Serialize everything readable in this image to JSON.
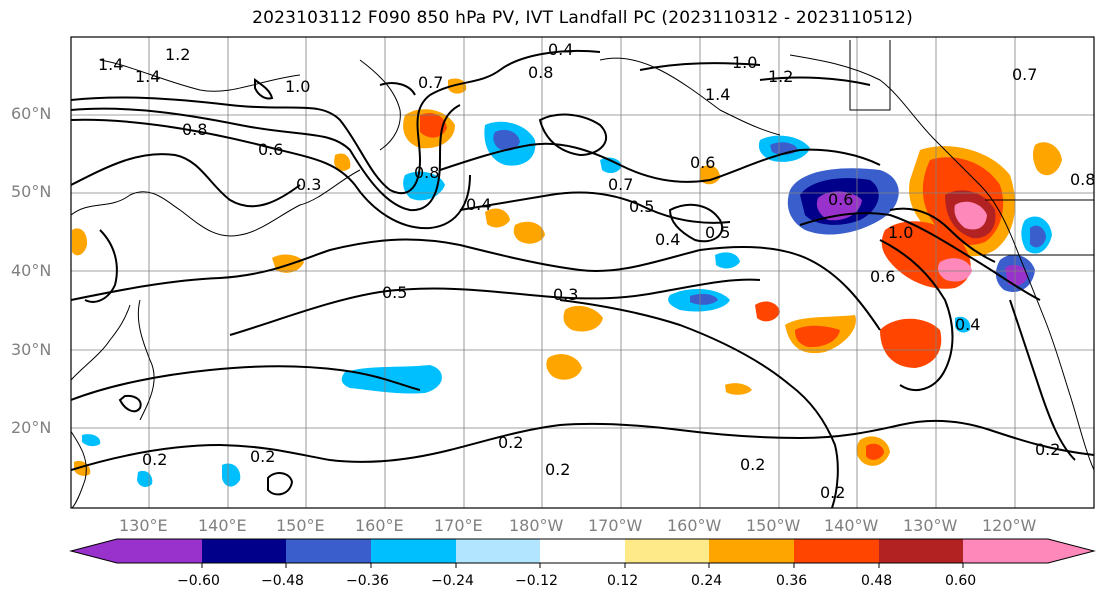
{
  "title": "2023103112 F090 850 hPa PV, IVT Landfall PC (2023110312 - 2023110512)",
  "lat_labels": [
    "60°N",
    "50°N",
    "40°N",
    "30°N",
    "20°N"
  ],
  "lon_labels": [
    "130°E",
    "140°E",
    "150°E",
    "160°E",
    "170°E",
    "180°W",
    "170°W",
    "160°W",
    "150°W",
    "140°W",
    "130°W",
    "120°W"
  ],
  "contour_labels": [
    "1.4",
    "1.4",
    "1.2",
    "1.0",
    "0.7",
    "0.4",
    "0.8",
    "1.0",
    "1.2",
    "1.4",
    "0.8",
    "0.6",
    "0.3",
    "0.8",
    "0.5",
    "0.4",
    "0.7",
    "0.6",
    "0.5",
    "0.4",
    "0.5",
    "0.3",
    "0.6",
    "1.0",
    "0.6",
    "0.4",
    "0.2",
    "0.2",
    "0.2",
    "0.2",
    "0.2",
    "0.2",
    "0.2",
    "0.7",
    "0.8"
  ],
  "colorbar": {
    "colors": [
      "#9932cc",
      "#00008b",
      "#3a5fcd",
      "#00bfff",
      "#b2e5ff",
      "#ffffff",
      "#ffea8a",
      "#ffa500",
      "#ff4500",
      "#b22222",
      "#ff88bb"
    ],
    "ticks": [
      "−0.60",
      "−0.48",
      "−0.36",
      "−0.24",
      "−0.12",
      "0.12",
      "0.24",
      "0.36",
      "0.48",
      "0.60"
    ]
  },
  "colors": {
    "coast": "#000000",
    "grid": "#808080",
    "contour": "#000000"
  }
}
